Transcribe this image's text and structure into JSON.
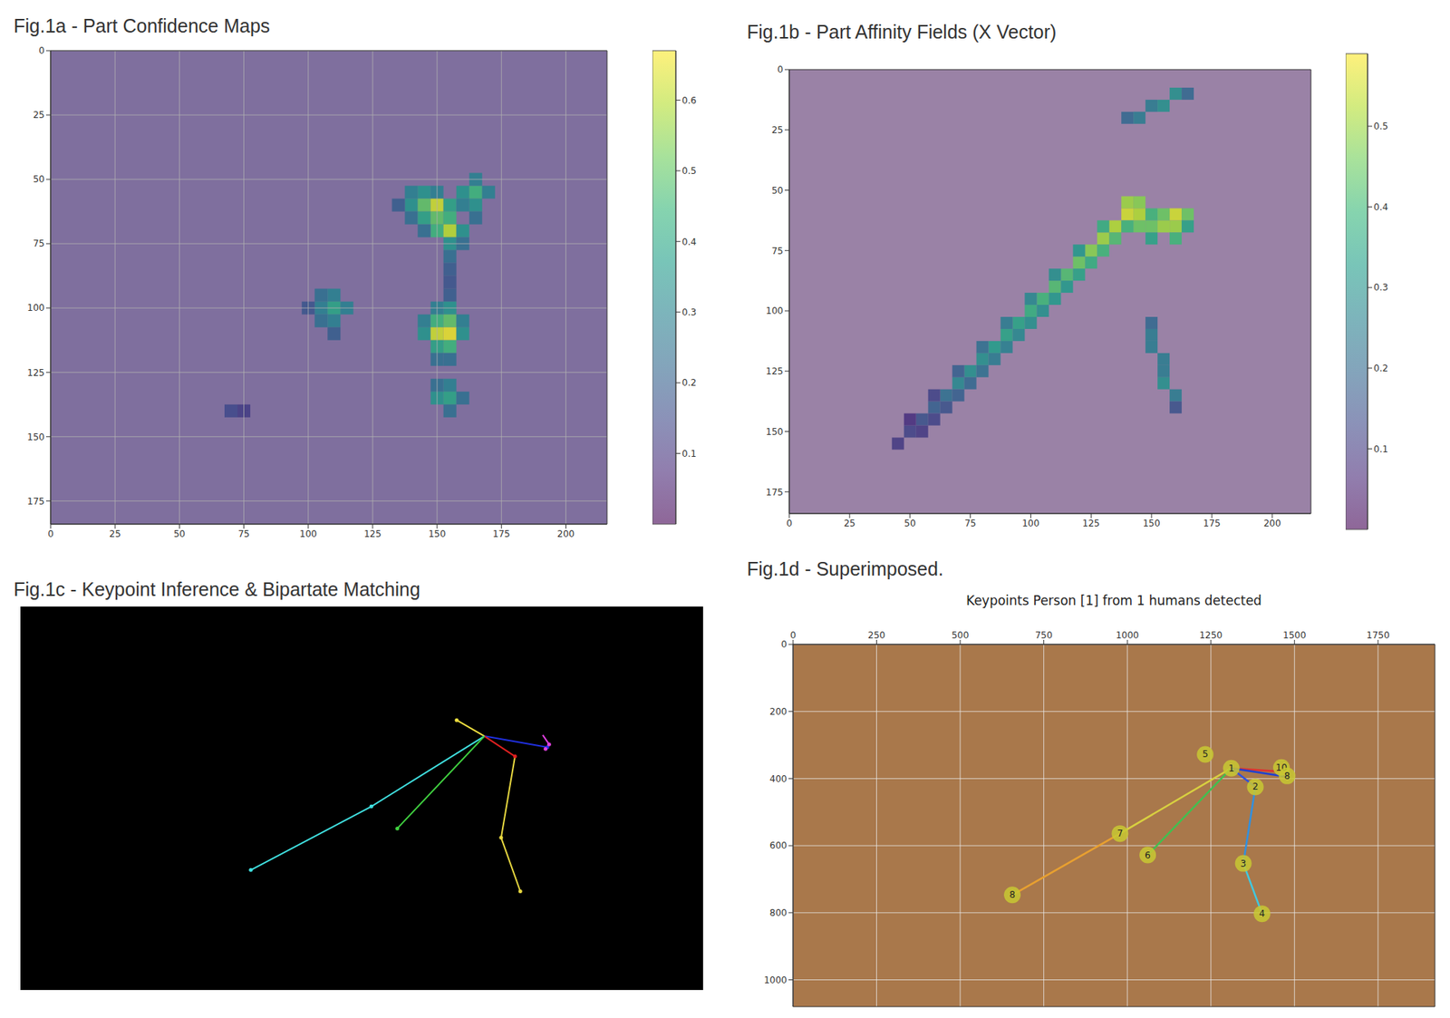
{
  "chart_data": [
    {
      "type": "heatmap",
      "title": "Fig.1a - Part Confidence Maps",
      "xlim": [
        0,
        216
      ],
      "ylim": [
        0,
        184
      ],
      "xticks": [
        0,
        25,
        50,
        75,
        100,
        125,
        150,
        175,
        200
      ],
      "yticks": [
        0,
        25,
        50,
        75,
        100,
        125,
        150,
        175
      ],
      "grid": true,
      "cell_size": 5,
      "color_range": [
        0,
        0.67
      ],
      "color_ticks": [
        0.1,
        0.2,
        0.3,
        0.4,
        0.5,
        0.6
      ],
      "cells": [
        [
          140,
          55,
          0.3
        ],
        [
          145,
          55,
          0.35
        ],
        [
          150,
          55,
          0.3
        ],
        [
          140,
          60,
          0.35
        ],
        [
          145,
          60,
          0.5
        ],
        [
          150,
          60,
          0.62
        ],
        [
          155,
          60,
          0.4
        ],
        [
          140,
          65,
          0.25
        ],
        [
          145,
          65,
          0.4
        ],
        [
          150,
          65,
          0.5
        ],
        [
          155,
          65,
          0.45
        ],
        [
          150,
          70,
          0.45
        ],
        [
          155,
          70,
          0.6
        ],
        [
          160,
          70,
          0.35
        ],
        [
          155,
          75,
          0.35
        ],
        [
          160,
          75,
          0.25
        ],
        [
          160,
          55,
          0.35
        ],
        [
          165,
          55,
          0.45
        ],
        [
          170,
          55,
          0.3
        ],
        [
          165,
          50,
          0.3
        ],
        [
          165,
          60,
          0.35
        ],
        [
          160,
          60,
          0.3
        ],
        [
          165,
          65,
          0.25
        ],
        [
          135,
          60,
          0.2
        ],
        [
          145,
          70,
          0.25
        ],
        [
          155,
          80,
          0.25
        ],
        [
          155,
          85,
          0.2
        ],
        [
          155,
          90,
          0.18
        ],
        [
          155,
          95,
          0.2
        ],
        [
          105,
          95,
          0.25
        ],
        [
          110,
          95,
          0.3
        ],
        [
          105,
          100,
          0.3
        ],
        [
          110,
          100,
          0.4
        ],
        [
          115,
          100,
          0.3
        ],
        [
          105,
          105,
          0.25
        ],
        [
          110,
          105,
          0.3
        ],
        [
          110,
          110,
          0.2
        ],
        [
          100,
          100,
          0.18
        ],
        [
          150,
          100,
          0.3
        ],
        [
          155,
          100,
          0.35
        ],
        [
          145,
          105,
          0.3
        ],
        [
          150,
          105,
          0.45
        ],
        [
          155,
          105,
          0.5
        ],
        [
          160,
          105,
          0.3
        ],
        [
          145,
          110,
          0.35
        ],
        [
          150,
          110,
          0.62
        ],
        [
          155,
          110,
          0.65
        ],
        [
          160,
          110,
          0.35
        ],
        [
          150,
          115,
          0.4
        ],
        [
          155,
          115,
          0.45
        ],
        [
          150,
          120,
          0.25
        ],
        [
          155,
          120,
          0.25
        ],
        [
          150,
          130,
          0.25
        ],
        [
          155,
          130,
          0.3
        ],
        [
          150,
          135,
          0.35
        ],
        [
          155,
          135,
          0.4
        ],
        [
          160,
          135,
          0.25
        ],
        [
          155,
          140,
          0.25
        ],
        [
          70,
          140,
          0.15
        ],
        [
          75,
          140,
          0.12
        ]
      ]
    },
    {
      "type": "heatmap",
      "title": "Fig.1b - Part Affinity Fields (X Vector)",
      "xlim": [
        0,
        216
      ],
      "ylim": [
        0,
        184
      ],
      "xticks": [
        0,
        25,
        50,
        75,
        100,
        125,
        150,
        175,
        200
      ],
      "yticks": [
        0,
        25,
        50,
        75,
        100,
        125,
        150,
        175
      ],
      "grid": false,
      "cell_size": 5,
      "color_range": [
        0,
        0.59
      ],
      "color_ticks": [
        0.1,
        0.2,
        0.3,
        0.4,
        0.5
      ],
      "cells": [
        [
          45,
          155,
          0.1
        ],
        [
          50,
          150,
          0.12
        ],
        [
          55,
          145,
          0.15
        ],
        [
          60,
          140,
          0.18
        ],
        [
          65,
          135,
          0.22
        ],
        [
          70,
          130,
          0.28
        ],
        [
          75,
          125,
          0.3
        ],
        [
          80,
          120,
          0.3
        ],
        [
          85,
          115,
          0.33
        ],
        [
          90,
          110,
          0.35
        ],
        [
          95,
          105,
          0.35
        ],
        [
          100,
          100,
          0.38
        ],
        [
          105,
          95,
          0.4
        ],
        [
          110,
          90,
          0.42
        ],
        [
          115,
          85,
          0.42
        ],
        [
          120,
          80,
          0.45
        ],
        [
          125,
          75,
          0.48
        ],
        [
          130,
          70,
          0.5
        ],
        [
          135,
          65,
          0.52
        ],
        [
          140,
          60,
          0.55
        ],
        [
          55,
          150,
          0.1
        ],
        [
          65,
          140,
          0.15
        ],
        [
          75,
          130,
          0.2
        ],
        [
          85,
          120,
          0.25
        ],
        [
          95,
          110,
          0.28
        ],
        [
          105,
          100,
          0.3
        ],
        [
          115,
          90,
          0.32
        ],
        [
          125,
          80,
          0.38
        ],
        [
          135,
          70,
          0.42
        ],
        [
          60,
          145,
          0.12
        ],
        [
          70,
          135,
          0.18
        ],
        [
          80,
          125,
          0.22
        ],
        [
          90,
          115,
          0.26
        ],
        [
          100,
          105,
          0.3
        ],
        [
          110,
          95,
          0.32
        ],
        [
          120,
          85,
          0.35
        ],
        [
          130,
          75,
          0.4
        ],
        [
          50,
          145,
          0.08
        ],
        [
          60,
          135,
          0.12
        ],
        [
          70,
          125,
          0.18
        ],
        [
          80,
          115,
          0.22
        ],
        [
          90,
          105,
          0.25
        ],
        [
          100,
          95,
          0.28
        ],
        [
          110,
          85,
          0.3
        ],
        [
          120,
          75,
          0.32
        ],
        [
          130,
          65,
          0.38
        ],
        [
          140,
          55,
          0.5
        ],
        [
          145,
          55,
          0.48
        ],
        [
          145,
          60,
          0.52
        ],
        [
          150,
          65,
          0.45
        ],
        [
          155,
          65,
          0.5
        ],
        [
          160,
          60,
          0.55
        ],
        [
          165,
          60,
          0.45
        ],
        [
          160,
          65,
          0.5
        ],
        [
          150,
          60,
          0.4
        ],
        [
          165,
          65,
          0.35
        ],
        [
          155,
          60,
          0.45
        ],
        [
          160,
          70,
          0.4
        ],
        [
          150,
          70,
          0.35
        ],
        [
          145,
          65,
          0.45
        ],
        [
          140,
          65,
          0.4
        ],
        [
          140,
          20,
          0.2
        ],
        [
          145,
          20,
          0.25
        ],
        [
          150,
          15,
          0.25
        ],
        [
          155,
          15,
          0.3
        ],
        [
          160,
          10,
          0.3
        ],
        [
          165,
          10,
          0.2
        ],
        [
          150,
          105,
          0.2
        ],
        [
          150,
          110,
          0.25
        ],
        [
          150,
          115,
          0.25
        ],
        [
          155,
          120,
          0.25
        ],
        [
          155,
          125,
          0.25
        ],
        [
          155,
          130,
          0.3
        ],
        [
          160,
          135,
          0.25
        ],
        [
          160,
          140,
          0.15
        ]
      ]
    },
    {
      "type": "diagram",
      "title": "Fig.1c - Keypoint Inference & Bipartate Matching",
      "tick_labels": false,
      "xlim": [
        0,
        1920
      ],
      "ylim": [
        0,
        1080
      ],
      "segments": [
        {
          "from": [
            1305,
            365
          ],
          "to": [
            1227,
            320
          ],
          "color": "#f0e040"
        },
        {
          "from": [
            1305,
            365
          ],
          "to": [
            1482,
            396
          ],
          "color": "#2030e0"
        },
        {
          "from": [
            1305,
            365
          ],
          "to": [
            1391,
            422
          ],
          "color": "#e02020"
        },
        {
          "from": [
            1391,
            422
          ],
          "to": [
            1352,
            651
          ],
          "color": "#e8d840"
        },
        {
          "from": [
            1352,
            651
          ],
          "to": [
            1406,
            802
          ],
          "color": "#e8d840"
        },
        {
          "from": [
            1305,
            365
          ],
          "to": [
            987,
            563
          ],
          "color": "#40e0e0"
        },
        {
          "from": [
            987,
            563
          ],
          "to": [
            648,
            742
          ],
          "color": "#40e0e0"
        },
        {
          "from": [
            1305,
            365
          ],
          "to": [
            1060,
            625
          ],
          "color": "#40d040"
        },
        {
          "from": [
            1469,
            362
          ],
          "to": [
            1487,
            388
          ],
          "color": "#e040e0"
        },
        {
          "from": [
            1487,
            388
          ],
          "to": [
            1477,
            401
          ],
          "color": "#e040e0"
        }
      ]
    },
    {
      "type": "scatter",
      "title": "Fig.1d - Superimposed.",
      "subtitle": "Keypoints Person [1] from 1 humans detected",
      "xlim": [
        0,
        1920
      ],
      "ylim": [
        0,
        1080
      ],
      "xticks": [
        0,
        250,
        500,
        750,
        1000,
        1250,
        1500,
        1750
      ],
      "yticks": [
        0,
        200,
        400,
        600,
        800,
        1000
      ],
      "grid": true,
      "segments": [
        {
          "from": [
            1311,
            369
          ],
          "to": [
            1383,
            425
          ],
          "color": "#3050e0"
        },
        {
          "from": [
            1383,
            425
          ],
          "to": [
            1347,
            653
          ],
          "color": "#3090e0"
        },
        {
          "from": [
            1347,
            653
          ],
          "to": [
            1403,
            803
          ],
          "color": "#40c8e0"
        },
        {
          "from": [
            1311,
            369
          ],
          "to": [
            978,
            564
          ],
          "color": "#d8d040"
        },
        {
          "from": [
            978,
            564
          ],
          "to": [
            656,
            747
          ],
          "color": "#e8a030"
        },
        {
          "from": [
            1311,
            369
          ],
          "to": [
            1061,
            628
          ],
          "color": "#40c050"
        },
        {
          "from": [
            1311,
            369
          ],
          "to": [
            1470,
            380
          ],
          "color": "#e03030"
        },
        {
          "from": [
            1311,
            369
          ],
          "to": [
            1480,
            395
          ],
          "color": "#2040d0"
        }
      ],
      "keypoints": [
        {
          "label": "5",
          "x": 1233,
          "y": 328
        },
        {
          "label": "1",
          "x": 1311,
          "y": 369
        },
        {
          "label": "2",
          "x": 1383,
          "y": 425
        },
        {
          "label": "3",
          "x": 1347,
          "y": 653
        },
        {
          "label": "4",
          "x": 1403,
          "y": 803
        },
        {
          "label": "7",
          "x": 978,
          "y": 564
        },
        {
          "label": "6",
          "x": 1061,
          "y": 628
        },
        {
          "label": "8",
          "x": 656,
          "y": 747
        },
        {
          "label": "10",
          "x": 1461,
          "y": 367
        },
        {
          "label": "8",
          "x": 1478,
          "y": 392
        }
      ]
    }
  ]
}
